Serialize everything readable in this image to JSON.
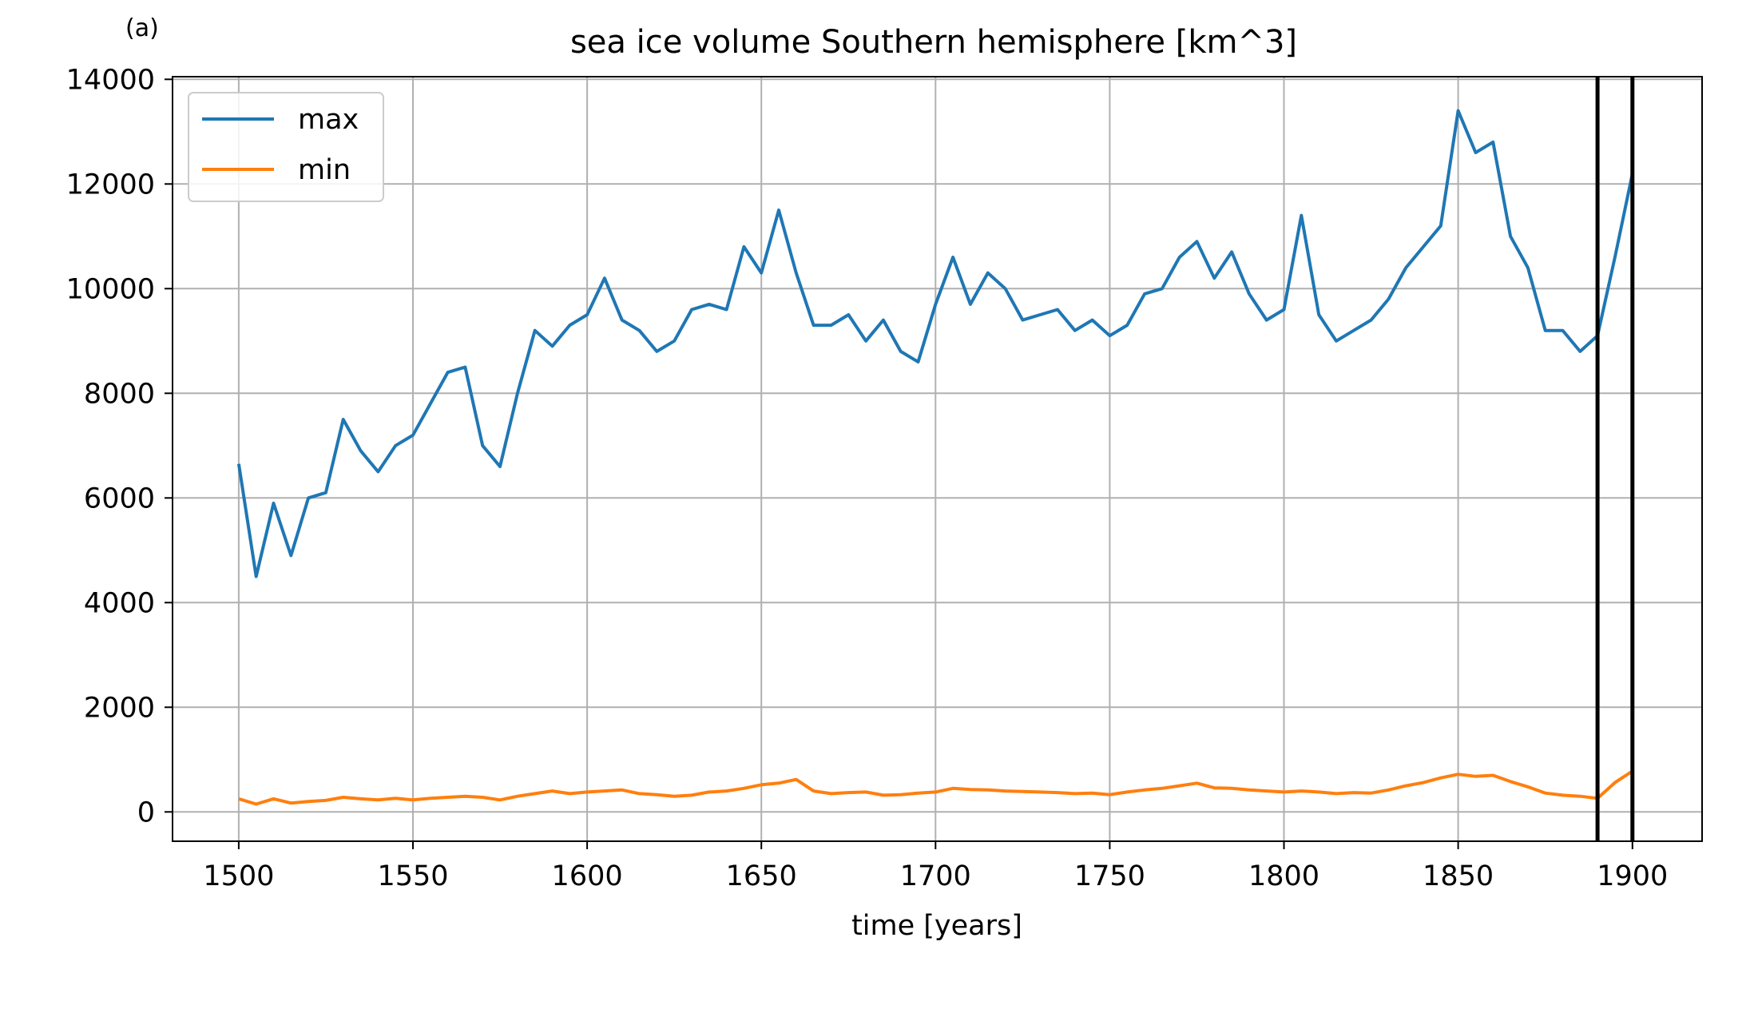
{
  "panel_label": "(a)",
  "chart_data": {
    "type": "line",
    "title": "sea ice volume Southern hemisphere [km^3]",
    "xlabel": "time [years]",
    "ylabel": "",
    "xlim": [
      1481,
      1920
    ],
    "ylim": [
      -560,
      14050
    ],
    "xticks": [
      1500,
      1550,
      1600,
      1650,
      1700,
      1750,
      1800,
      1850,
      1900
    ],
    "yticks": [
      0,
      2000,
      4000,
      6000,
      8000,
      10000,
      12000,
      14000
    ],
    "grid": true,
    "legend": {
      "position": "top-left",
      "entries": [
        "max",
        "min"
      ]
    },
    "vertical_lines": [
      1890,
      1900
    ],
    "vertical_line_color": "#000000",
    "x": [
      1500,
      1505,
      1510,
      1515,
      1520,
      1525,
      1530,
      1535,
      1540,
      1545,
      1550,
      1555,
      1560,
      1565,
      1570,
      1575,
      1580,
      1585,
      1590,
      1595,
      1600,
      1605,
      1610,
      1615,
      1620,
      1625,
      1630,
      1635,
      1640,
      1645,
      1650,
      1655,
      1660,
      1665,
      1670,
      1675,
      1680,
      1685,
      1690,
      1695,
      1700,
      1705,
      1710,
      1715,
      1720,
      1725,
      1730,
      1735,
      1740,
      1745,
      1750,
      1755,
      1760,
      1765,
      1770,
      1775,
      1780,
      1785,
      1790,
      1795,
      1800,
      1805,
      1810,
      1815,
      1820,
      1825,
      1830,
      1835,
      1840,
      1845,
      1850,
      1855,
      1860,
      1865,
      1870,
      1875,
      1880,
      1885,
      1890,
      1895,
      1900
    ],
    "series": [
      {
        "name": "max",
        "color": "#1f77b4",
        "values": [
          6650,
          4500,
          5900,
          4900,
          6000,
          6100,
          7500,
          6900,
          6500,
          7000,
          7200,
          7800,
          8400,
          8500,
          7000,
          6600,
          8000,
          9200,
          8900,
          9300,
          9500,
          10200,
          9400,
          9200,
          8800,
          9000,
          9600,
          9700,
          9600,
          10800,
          10300,
          11500,
          10300,
          9300,
          9300,
          9500,
          9000,
          9400,
          8800,
          8600,
          9700,
          10600,
          9700,
          10300,
          10000,
          9400,
          9500,
          9600,
          9200,
          9400,
          9100,
          9300,
          9900,
          10000,
          10600,
          10900,
          10200,
          10700,
          9900,
          9400,
          9600,
          11400,
          9500,
          9000,
          9200,
          9400,
          9800,
          10400,
          10800,
          11200,
          13400,
          12600,
          12800,
          11000,
          10400,
          9200,
          9200,
          8800,
          9100,
          10600,
          12200
        ]
      },
      {
        "name": "min",
        "color": "#ff7f0e",
        "values": [
          250,
          150,
          250,
          170,
          200,
          220,
          280,
          250,
          230,
          260,
          230,
          260,
          280,
          300,
          280,
          230,
          300,
          350,
          400,
          350,
          380,
          400,
          420,
          350,
          330,
          300,
          320,
          380,
          400,
          450,
          520,
          550,
          620,
          400,
          350,
          370,
          380,
          320,
          330,
          360,
          380,
          450,
          430,
          420,
          400,
          390,
          380,
          370,
          350,
          360,
          330,
          380,
          420,
          450,
          500,
          550,
          460,
          450,
          420,
          400,
          380,
          400,
          380,
          350,
          370,
          360,
          420,
          500,
          560,
          650,
          720,
          680,
          700,
          580,
          480,
          360,
          320,
          300,
          260,
          560,
          780
        ]
      }
    ]
  }
}
